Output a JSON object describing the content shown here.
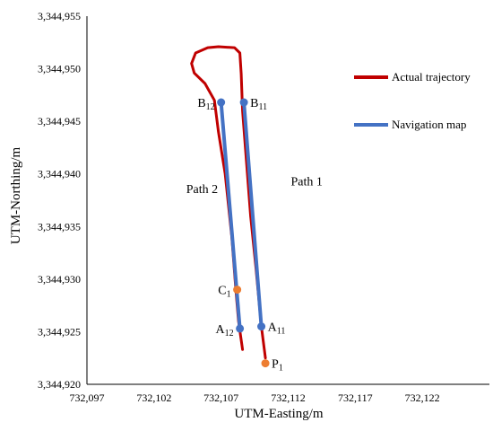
{
  "chart_data": {
    "type": "line",
    "xlabel": "UTM-Easting/m",
    "ylabel": "UTM-Northing/m",
    "xlim": [
      732097,
      732127
    ],
    "ylim": [
      3344920,
      3344955
    ],
    "x_tick_values": [
      732097,
      732102,
      732107,
      732112,
      732117,
      732122
    ],
    "y_tick_values": [
      3344920,
      3344925,
      3344930,
      3344935,
      3344940,
      3344945,
      3344950,
      3344955
    ],
    "x_tick_labels": [
      "732,097",
      "732,102",
      "732,107",
      "732,112",
      "732,117",
      "732,122"
    ],
    "y_tick_labels": [
      "3,344,920",
      "3,344,925",
      "3,344,930",
      "3,344,935",
      "3,344,940",
      "3,344,945",
      "3,344,950",
      "3,344,955"
    ],
    "grid": false,
    "legend_position": "right",
    "series": [
      {
        "name": "Actual trajectory",
        "color": "#C00000",
        "points": [
          [
            732110.3,
            3344922.5
          ],
          [
            732110.0,
            3344925.5
          ],
          [
            732109.6,
            3344931.0
          ],
          [
            732109.2,
            3344936.0
          ],
          [
            732108.9,
            3344941.0
          ],
          [
            732108.6,
            3344946.0
          ],
          [
            732108.5,
            3344949.5
          ],
          [
            732108.4,
            3344951.5
          ],
          [
            732108.0,
            3344952.0
          ],
          [
            732106.8,
            3344952.1
          ],
          [
            732106.0,
            3344952.0
          ],
          [
            732105.1,
            3344951.5
          ],
          [
            732104.8,
            3344950.5
          ],
          [
            732105.0,
            3344949.6
          ],
          [
            732105.8,
            3344948.6
          ],
          [
            732106.5,
            3344947.0
          ],
          [
            732106.8,
            3344944.0
          ],
          [
            732107.3,
            3344940.0
          ],
          [
            732107.8,
            3344934.0
          ],
          [
            732108.1,
            3344929.0
          ],
          [
            732108.3,
            3344926.0
          ],
          [
            732108.6,
            3344923.3
          ]
        ]
      },
      {
        "name": "Navigation map",
        "color": "#4472C4",
        "segments": [
          [
            [
              732110.0,
              3344925.5
            ],
            [
              732108.7,
              3344946.8
            ]
          ],
          [
            [
              732107.0,
              3344946.8
            ],
            [
              732108.4,
              3344925.3
            ]
          ]
        ]
      }
    ],
    "points": [
      {
        "label": "B",
        "sub": "12",
        "x": 732107.0,
        "y": 3344946.8,
        "color": "#4472C4",
        "anchor": "left"
      },
      {
        "label": "B",
        "sub": "11",
        "x": 732108.7,
        "y": 3344946.8,
        "color": "#4472C4",
        "anchor": "right"
      },
      {
        "label": "C",
        "sub": "1",
        "x": 732108.2,
        "y": 3344929.0,
        "color": "#ED7D31",
        "anchor": "left"
      },
      {
        "label": "A",
        "sub": "12",
        "x": 732108.4,
        "y": 3344925.3,
        "color": "#4472C4",
        "anchor": "left"
      },
      {
        "label": "A",
        "sub": "11",
        "x": 732110.0,
        "y": 3344925.5,
        "color": "#4472C4",
        "anchor": "right"
      },
      {
        "label": "P",
        "sub": "1",
        "x": 732110.3,
        "y": 3344922.0,
        "color": "#ED7D31",
        "anchor": "right"
      }
    ],
    "annotations": [
      {
        "text": "Path 2",
        "x": 732104.4,
        "y": 3344938.2
      },
      {
        "text": "Path 1",
        "x": 732112.2,
        "y": 3344938.9
      }
    ]
  }
}
